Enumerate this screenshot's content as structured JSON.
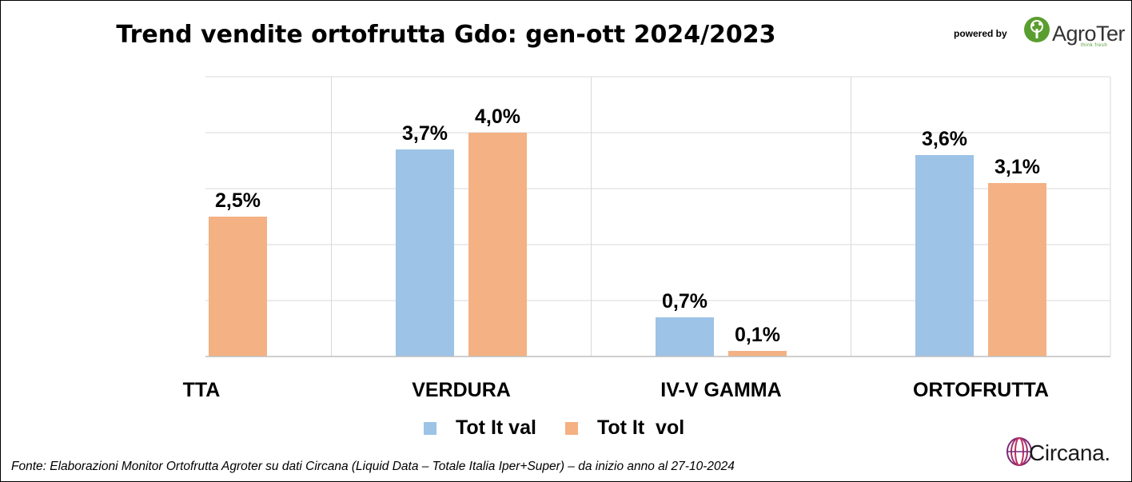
{
  "header": {
    "title": "Trend vendite ortofrutta Gdo: gen-ott 2024/2023",
    "powered_by": "powered by",
    "brand_name": "AgroTer",
    "brand_tagline": "think fresh"
  },
  "chart_data": {
    "type": "bar",
    "title": "Trend vendite ortofrutta Gdo: gen-ott 2024/2023",
    "categories": [
      "TTA",
      "VERDURA",
      "IV-V GAMMA",
      "ORTOFRUTTA"
    ],
    "series": [
      {
        "name": "Tot It val",
        "color": "#9dc3e6",
        "values": [
          null,
          3.7,
          0.7,
          3.6
        ],
        "labels": [
          "",
          "3,7%",
          "0,7%",
          "3,6%"
        ]
      },
      {
        "name": "Tot It  vol",
        "color": "#f4b183",
        "values": [
          2.5,
          4.0,
          0.1,
          3.1
        ],
        "labels": [
          "2,5%",
          "4,0%",
          "0,1%",
          "3,1%"
        ]
      }
    ],
    "ylim": [
      0,
      5
    ],
    "grid": true,
    "legend_position": "bottom"
  },
  "footer": {
    "source": "Fonte: Elaborazioni Monitor Ortofrutta Agroter su dati Circana (Liquid Data – Totale Italia Iper+Super) –  da inizio anno al 27-10-2024",
    "circana": "Circana."
  }
}
